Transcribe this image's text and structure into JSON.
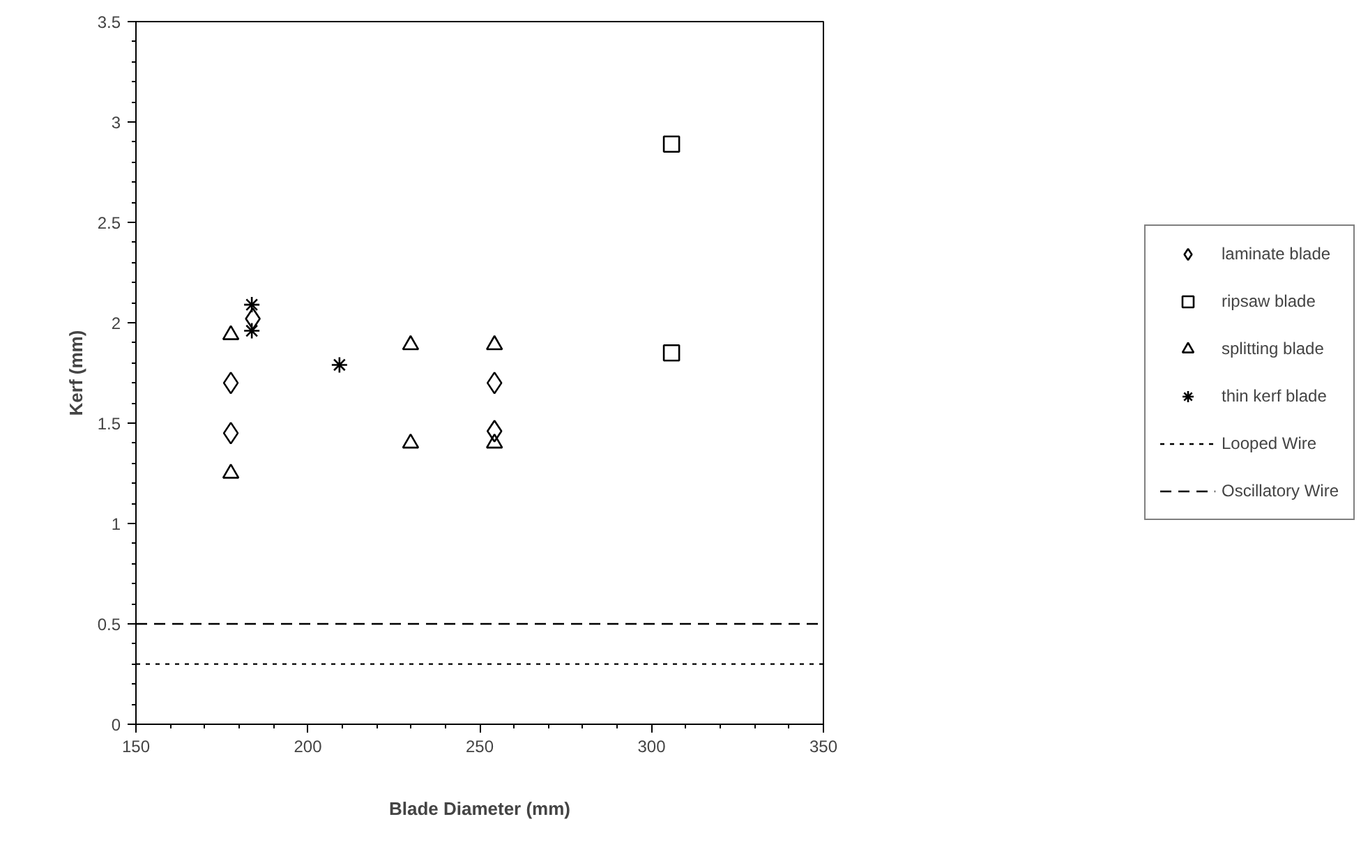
{
  "chart_data": {
    "type": "scatter",
    "xlabel": "Blade Diameter (mm)",
    "ylabel": "Kerf (mm)",
    "series": [
      {
        "name": "laminate blade",
        "color": "#000000",
        "marker": "diamond",
        "x": [
          177.6,
          177.6,
          184,
          254.3,
          254.3
        ],
        "values": [
          1.7,
          1.45,
          2.02,
          1.7,
          1.46
        ]
      },
      {
        "name": "ripsaw blade",
        "color": "#000000",
        "marker": "square",
        "x": [
          305.8,
          305.8
        ],
        "values": [
          2.89,
          1.85
        ]
      },
      {
        "name": "splitting blade",
        "color": "#000000",
        "marker": "triangle",
        "x": [
          177.6,
          177.6,
          229.9,
          229.9,
          254.3,
          254.3
        ],
        "values": [
          1.94,
          1.25,
          1.89,
          1.4,
          1.89,
          1.4
        ]
      },
      {
        "name": "thin kerf blade",
        "color": "#000000",
        "marker": "cross",
        "x": [
          183.7,
          183.7,
          209.2
        ],
        "values": [
          2.09,
          1.96,
          1.79
        ]
      }
    ],
    "ref_lines": [
      {
        "axis": "y",
        "value": 0.3,
        "label": "Looped Wire",
        "color": "#000000",
        "line_style": "dotted"
      },
      {
        "axis": "y",
        "value": 0.5,
        "label": "Oscillatory Wire",
        "color": "#000000",
        "line_style": "dashed"
      }
    ],
    "xlim": [
      150,
      350
    ],
    "xticks": [
      150,
      200,
      250,
      300,
      350
    ],
    "ylim": [
      0,
      3.5
    ],
    "yticks": [
      0,
      0.5,
      1,
      1.5,
      2,
      2.5,
      3,
      3.5
    ],
    "grid": false,
    "legend": "right"
  }
}
